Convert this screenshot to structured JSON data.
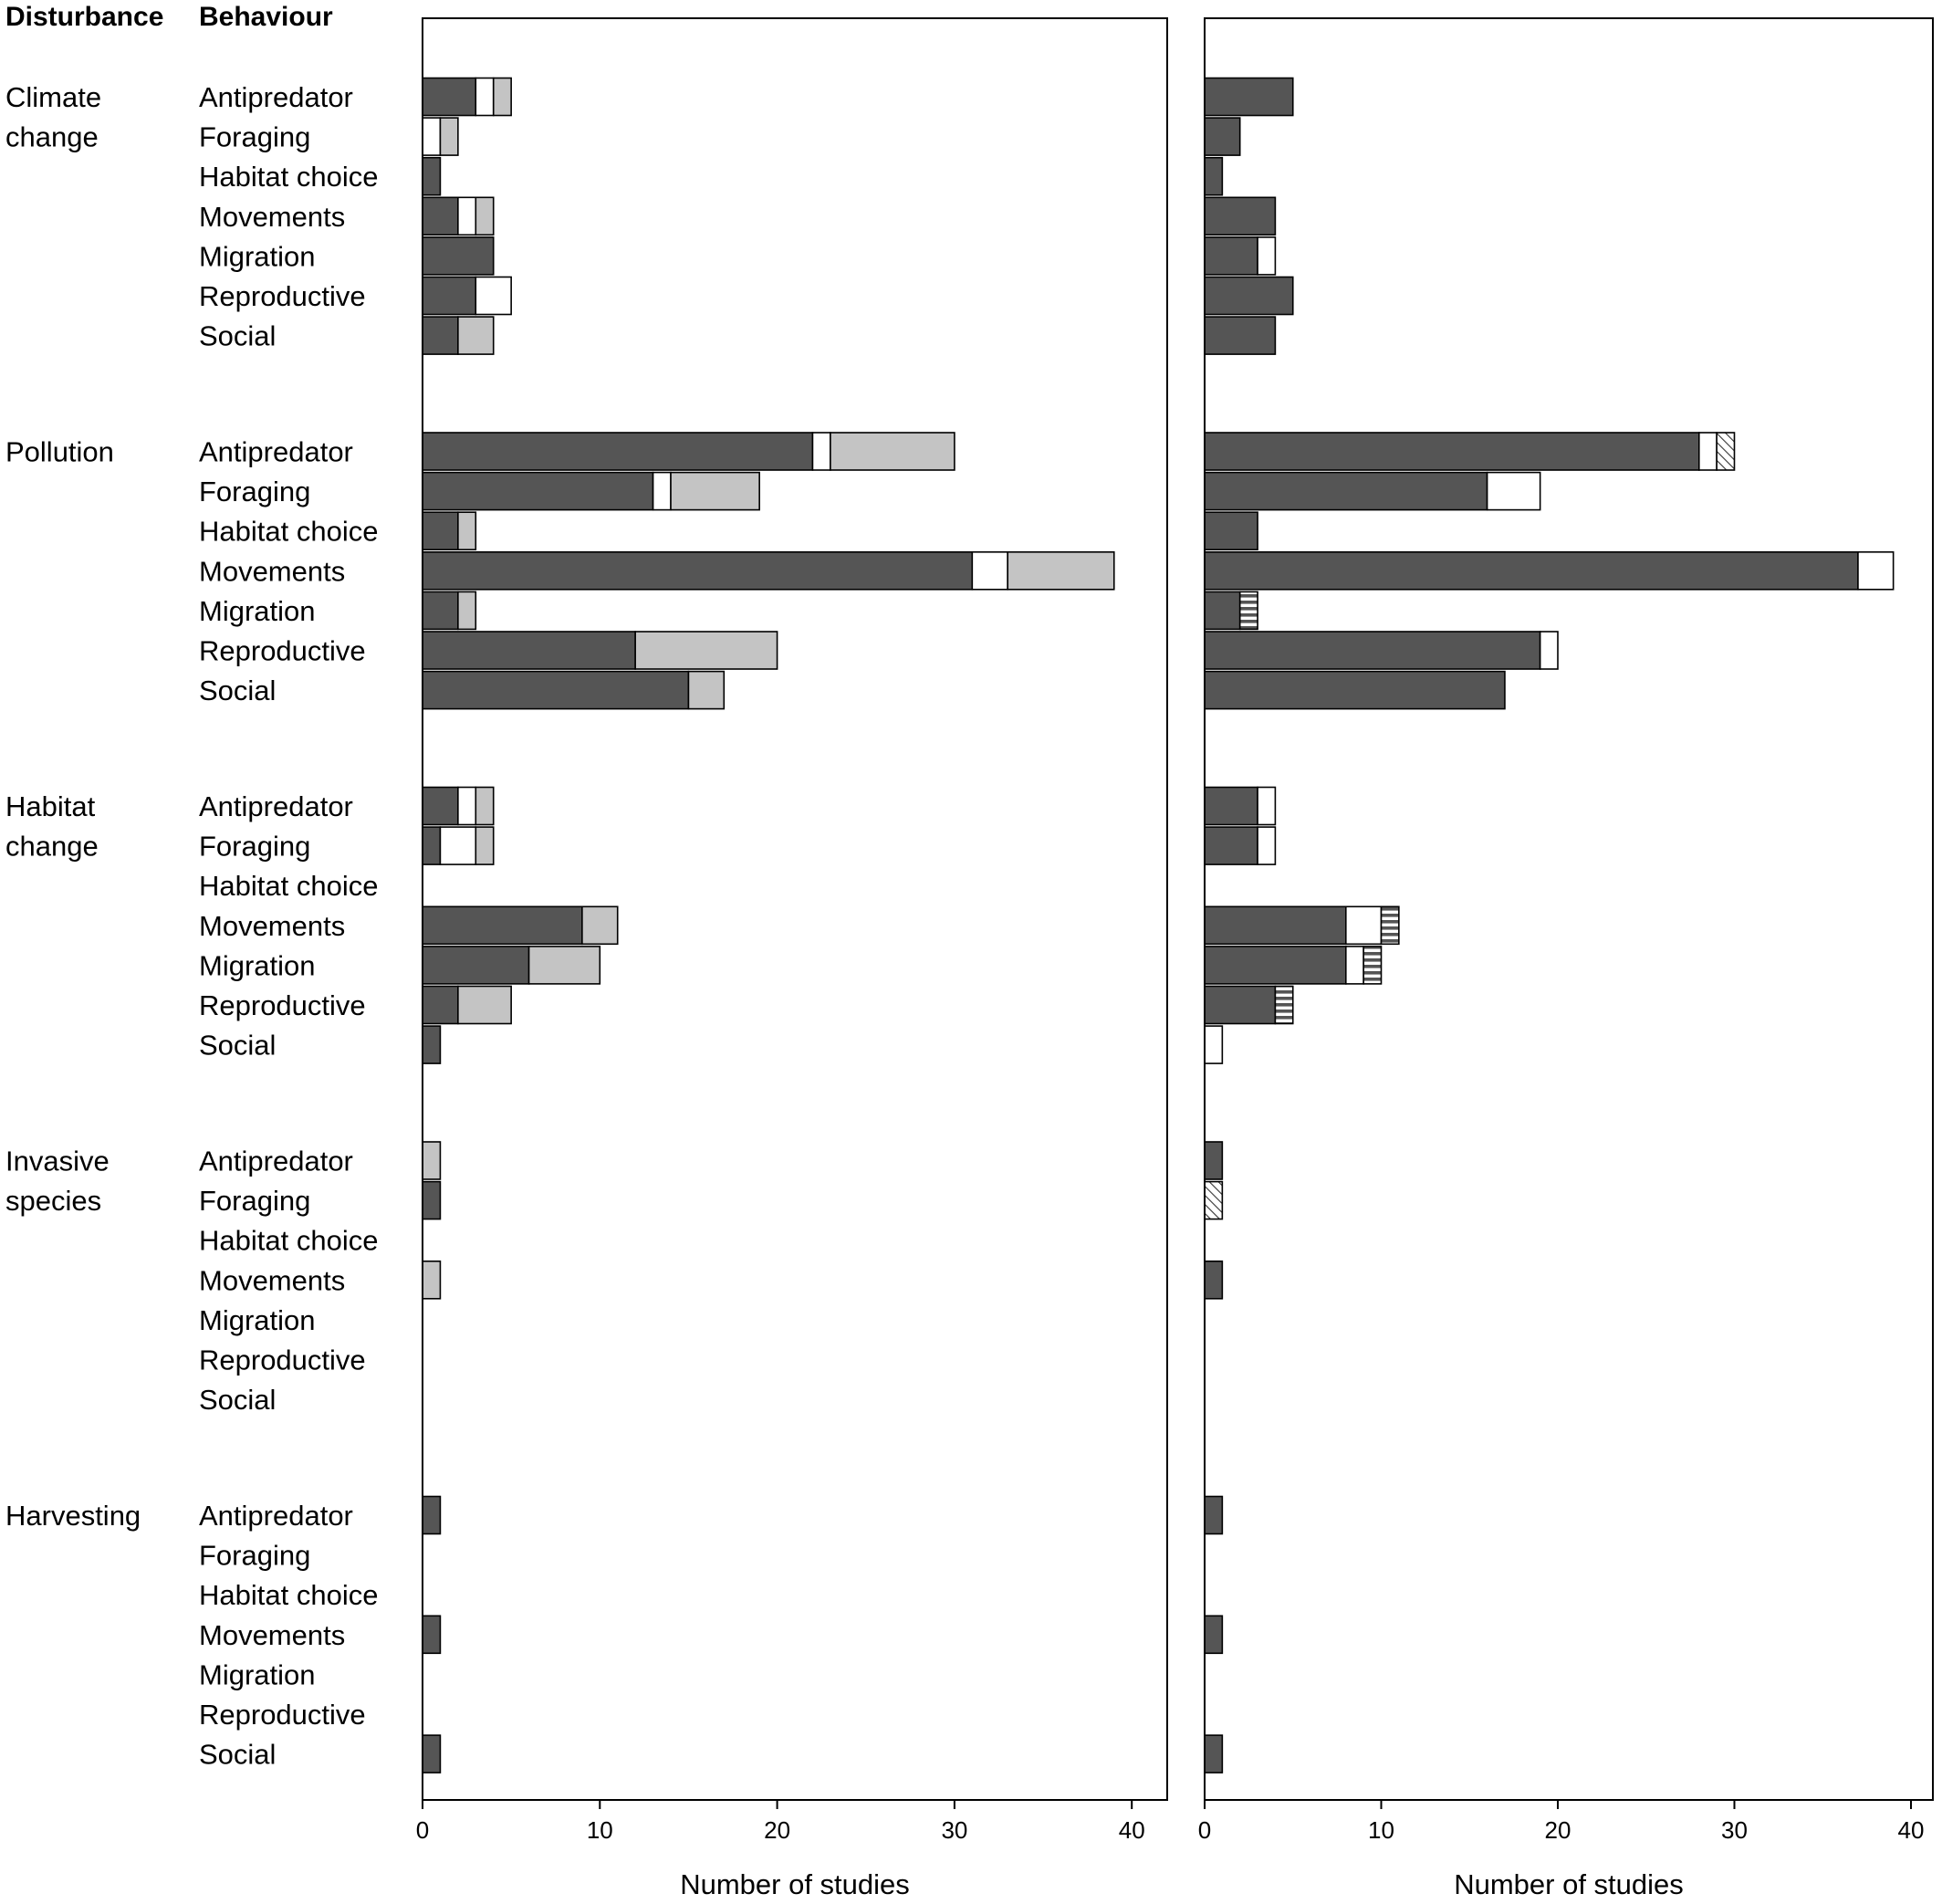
{
  "chart_data": {
    "type": "bar",
    "orientation": "horizontal",
    "stacked": true,
    "headers": {
      "disturbance": "Disturbance",
      "behaviour": "Behaviour"
    },
    "groups": [
      {
        "label": "Climate change",
        "label_lines": [
          "Climate",
          "change"
        ]
      },
      {
        "label": "Pollution",
        "label_lines": [
          "Pollution"
        ]
      },
      {
        "label": "Habitat change",
        "label_lines": [
          "Habitat",
          "change"
        ]
      },
      {
        "label": "Invasive species",
        "label_lines": [
          "Invasive",
          "species"
        ]
      },
      {
        "label": "Harvesting",
        "label_lines": [
          "Harvesting"
        ]
      }
    ],
    "behaviours": [
      "Antipredator",
      "Foraging",
      "Habitat choice",
      "Movements",
      "Migration",
      "Reproductive",
      "Social"
    ],
    "segment_styles": {
      "dark": "#555555",
      "white": "#ffffff",
      "light": "#c4c4c4",
      "hatched": "diagonal-hatch",
      "striped": "horizontal-stripes"
    },
    "panels": [
      {
        "xlabel": "Number of studies",
        "xlim": [
          0,
          42
        ],
        "xticks": [
          0,
          10,
          20,
          30,
          40
        ],
        "series": [
          "dark",
          "white",
          "light"
        ],
        "values": [
          [
            [
              3,
              1,
              1
            ],
            [
              0,
              1,
              1
            ],
            [
              1,
              0,
              0
            ],
            [
              2,
              1,
              1
            ],
            [
              4,
              0,
              0
            ],
            [
              3,
              2,
              0
            ],
            [
              2,
              0,
              2
            ]
          ],
          [
            [
              22,
              1,
              7
            ],
            [
              13,
              1,
              5
            ],
            [
              2,
              0,
              1
            ],
            [
              31,
              2,
              6
            ],
            [
              2,
              0,
              1
            ],
            [
              12,
              0,
              8
            ],
            [
              15,
              0,
              2
            ]
          ],
          [
            [
              2,
              1,
              1
            ],
            [
              1,
              2,
              1
            ],
            [
              0,
              0,
              0
            ],
            [
              9,
              0,
              2
            ],
            [
              6,
              0,
              4
            ],
            [
              2,
              0,
              3
            ],
            [
              1,
              0,
              0
            ]
          ],
          [
            [
              0,
              0,
              1
            ],
            [
              1,
              0,
              0
            ],
            [
              0,
              0,
              0
            ],
            [
              0,
              0,
              1
            ],
            [
              0,
              0,
              0
            ],
            [
              0,
              0,
              0
            ],
            [
              0,
              0,
              0
            ]
          ],
          [
            [
              1,
              0,
              0
            ],
            [
              0,
              0,
              0
            ],
            [
              0,
              0,
              0
            ],
            [
              1,
              0,
              0
            ],
            [
              0,
              0,
              0
            ],
            [
              0,
              0,
              0
            ],
            [
              1,
              0,
              0
            ]
          ]
        ]
      },
      {
        "xlabel": "Number of studies",
        "xlim": [
          0,
          40.5
        ],
        "xticks": [
          0,
          10,
          20,
          30,
          40
        ],
        "series": [
          "dark",
          "white",
          "hatched",
          "striped"
        ],
        "values": [
          [
            [
              5,
              0,
              0,
              0
            ],
            [
              2,
              0,
              0,
              0
            ],
            [
              1,
              0,
              0,
              0
            ],
            [
              4,
              0,
              0,
              0
            ],
            [
              3,
              1,
              0,
              0
            ],
            [
              5,
              0,
              0,
              0
            ],
            [
              4,
              0,
              0,
              0
            ]
          ],
          [
            [
              28,
              1,
              1,
              0
            ],
            [
              16,
              3,
              0,
              0
            ],
            [
              3,
              0,
              0,
              0
            ],
            [
              37,
              2,
              0,
              0
            ],
            [
              2,
              0,
              0,
              1
            ],
            [
              19,
              1,
              0,
              0
            ],
            [
              17,
              0,
              0,
              0
            ]
          ],
          [
            [
              3,
              1,
              0,
              0
            ],
            [
              3,
              1,
              0,
              0
            ],
            [
              0,
              0,
              0,
              0
            ],
            [
              8,
              2,
              0,
              1
            ],
            [
              8,
              1,
              0,
              1
            ],
            [
              4,
              0,
              0,
              1
            ],
            [
              0,
              1,
              0,
              0
            ]
          ],
          [
            [
              1,
              0,
              0,
              0
            ],
            [
              0,
              0,
              1,
              0
            ],
            [
              0,
              0,
              0,
              0
            ],
            [
              1,
              0,
              0,
              0
            ],
            [
              0,
              0,
              0,
              0
            ],
            [
              0,
              0,
              0,
              0
            ],
            [
              0,
              0,
              0,
              0
            ]
          ],
          [
            [
              1,
              0,
              0,
              0
            ],
            [
              0,
              0,
              0,
              0
            ],
            [
              0,
              0,
              0,
              0
            ],
            [
              1,
              0,
              0,
              0
            ],
            [
              0,
              0,
              0,
              0
            ],
            [
              0,
              0,
              0,
              0
            ],
            [
              1,
              0,
              0,
              0
            ]
          ]
        ]
      }
    ]
  }
}
